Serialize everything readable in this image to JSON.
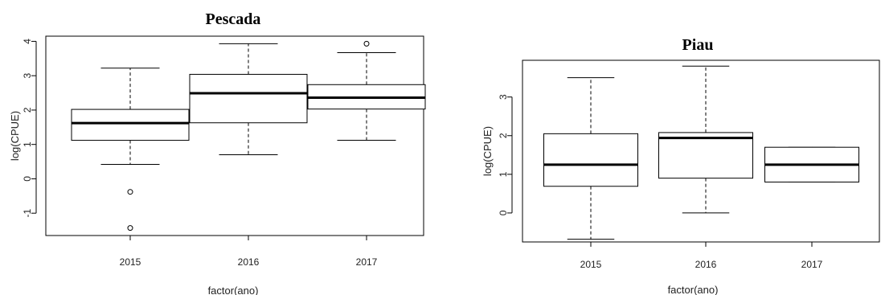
{
  "chart_data": [
    {
      "type": "box",
      "title": "Pescada",
      "xlabel": "factor(ano)",
      "ylabel": "log(CPUE)",
      "categories": [
        "2015",
        "2016",
        "2017"
      ],
      "ylim": [
        -1.65,
        4.15
      ],
      "yticks": [
        -1,
        0,
        1,
        2,
        3,
        4
      ],
      "grid": false,
      "boxes": [
        {
          "category": "2015",
          "whisker_low": 0.42,
          "q1": 1.12,
          "median": 1.62,
          "q3": 2.02,
          "whisker_high": 3.22,
          "outliers": [
            -0.38,
            -1.43
          ]
        },
        {
          "category": "2016",
          "whisker_low": 0.7,
          "q1": 1.63,
          "median": 2.49,
          "q3": 3.04,
          "whisker_high": 3.93,
          "outliers": []
        },
        {
          "category": "2017",
          "whisker_low": 1.12,
          "q1": 2.03,
          "median": 2.36,
          "q3": 2.74,
          "whisker_high": 3.67,
          "outliers": [
            3.93
          ]
        }
      ]
    },
    {
      "type": "box",
      "title": "Piau",
      "xlabel": "factor(ano)",
      "ylabel": "log(CPUE)",
      "categories": [
        "2015",
        "2016",
        "2017"
      ],
      "ylim": [
        -0.75,
        3.95
      ],
      "yticks": [
        0,
        1,
        2,
        3
      ],
      "grid": false,
      "boxes": [
        {
          "category": "2015",
          "whisker_low": -0.68,
          "q1": 0.69,
          "median": 1.25,
          "q3": 2.05,
          "whisker_high": 3.5,
          "outliers": []
        },
        {
          "category": "2016",
          "whisker_low": 0.0,
          "q1": 0.9,
          "median": 1.94,
          "q3": 2.08,
          "whisker_high": 3.8,
          "outliers": []
        },
        {
          "category": "2017",
          "whisker_low": 0.8,
          "q1": 0.8,
          "median": 1.25,
          "q3": 1.7,
          "whisker_high": 1.7,
          "outliers": []
        }
      ]
    }
  ]
}
